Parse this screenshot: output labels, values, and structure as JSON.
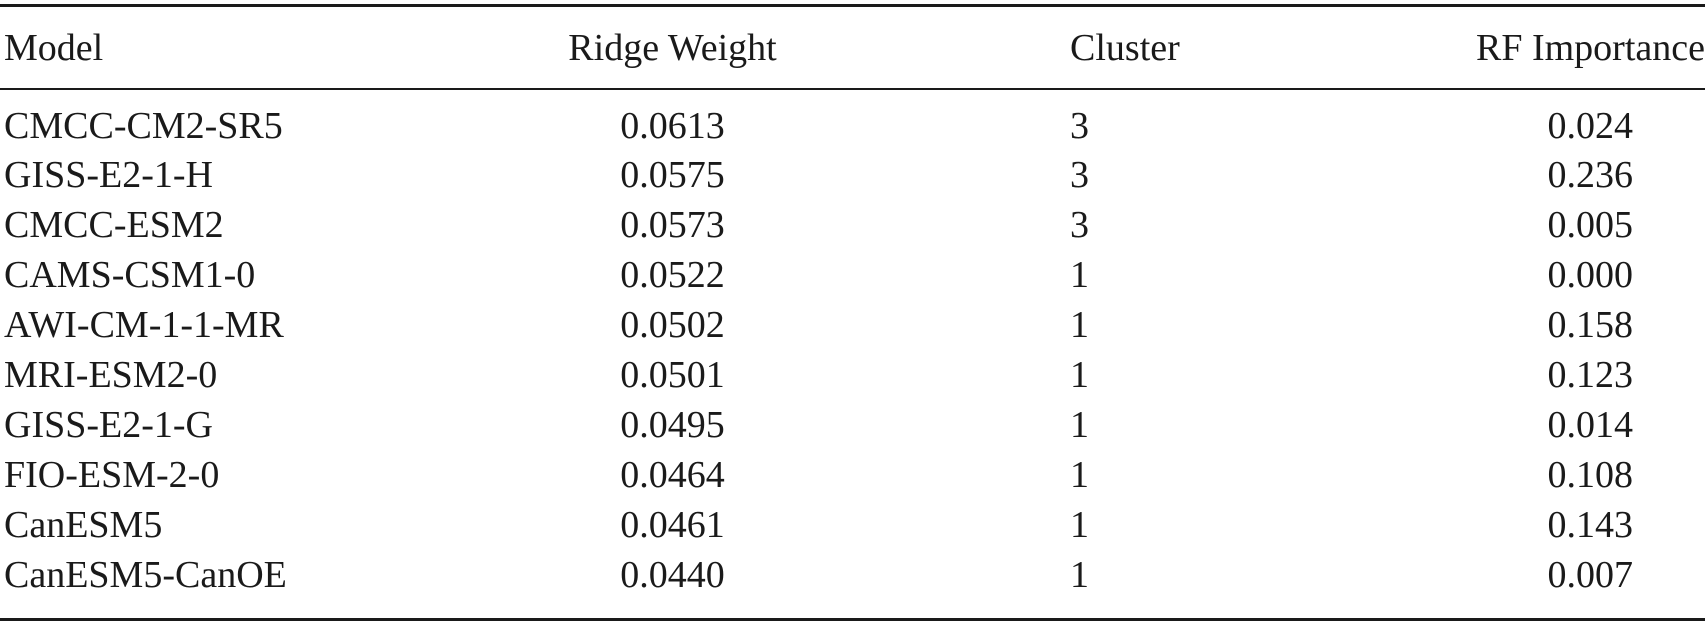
{
  "table": {
    "headers": [
      "Model",
      "Ridge Weight",
      "Cluster",
      "RF Importance"
    ],
    "rows": [
      [
        "CMCC-CM2-SR5",
        "0.0613",
        "3",
        "0.024"
      ],
      [
        "GISS-E2-1-H",
        "0.0575",
        "3",
        "0.236"
      ],
      [
        "CMCC-ESM2",
        "0.0573",
        "3",
        "0.005"
      ],
      [
        "CAMS-CSM1-0",
        "0.0522",
        "1",
        "0.000"
      ],
      [
        "AWI-CM-1-1-MR",
        "0.0502",
        "1",
        "0.158"
      ],
      [
        "MRI-ESM2-0",
        "0.0501",
        "1",
        "0.123"
      ],
      [
        "GISS-E2-1-G",
        "0.0495",
        "1",
        "0.014"
      ],
      [
        "FIO-ESM-2-0",
        "0.0464",
        "1",
        "0.108"
      ],
      [
        "CanESM5",
        "0.0461",
        "1",
        "0.143"
      ],
      [
        "CanESM5-CanOE",
        "0.0440",
        "1",
        "0.007"
      ]
    ]
  }
}
